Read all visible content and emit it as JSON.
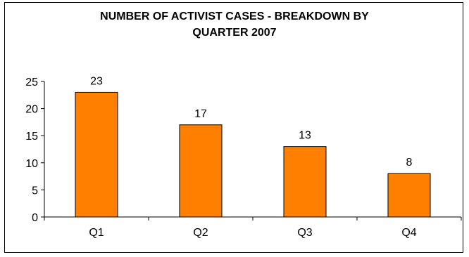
{
  "chart_data": {
    "type": "bar",
    "title_lines": [
      "NUMBER OF ACTIVIST CASES - BREAKDOWN BY",
      "QUARTER 2007"
    ],
    "categories": [
      "Q1",
      "Q2",
      "Q3",
      "Q4"
    ],
    "values": [
      23,
      17,
      13,
      8
    ],
    "ylim": [
      0,
      25
    ],
    "yticks": [
      0,
      5,
      10,
      15,
      20,
      25
    ],
    "grid": false,
    "legend": "none",
    "colors": {
      "bar_fill": "#FF8000",
      "bar_stroke": "#000000"
    }
  }
}
